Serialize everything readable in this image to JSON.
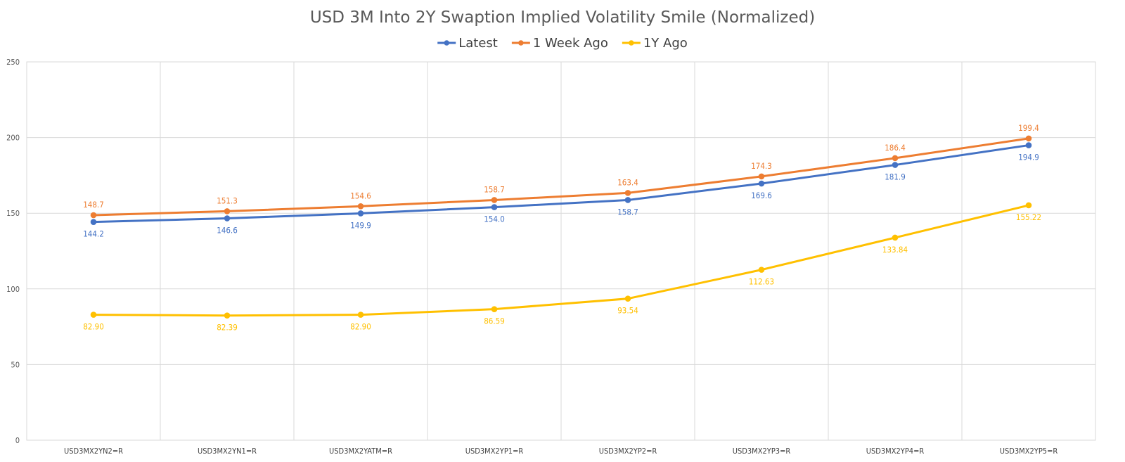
{
  "chart_data": {
    "type": "line",
    "title": "USD 3M Into 2Y Swaption Implied Volatility Smile (Normalized)",
    "xlabel": "",
    "ylabel": "",
    "categories": [
      "USD3MX2YN2=R",
      "USD3MX2YN1=R",
      "USD3MX2YATM=R",
      "USD3MX2YP1=R",
      "USD3MX2YP2=R",
      "USD3MX2YP3=R",
      "USD3MX2YP4=R",
      "USD3MX2YP5=R"
    ],
    "ylim": [
      0,
      250
    ],
    "yticks": [
      0,
      50,
      100,
      150,
      200,
      250
    ],
    "grid": true,
    "legend_position": "top",
    "series": [
      {
        "name": "Latest",
        "color": "#4472C4",
        "values": [
          144.2,
          146.6,
          149.9,
          154.0,
          158.7,
          169.6,
          181.9,
          194.9
        ],
        "labels": [
          "144.2",
          "146.6",
          "149.9",
          "154.0",
          "158.7",
          "169.6",
          "181.9",
          "194.9"
        ],
        "label_position": "below"
      },
      {
        "name": "1 Week Ago",
        "color": "#ED7D31",
        "values": [
          148.7,
          151.3,
          154.6,
          158.7,
          163.4,
          174.3,
          186.4,
          199.4
        ],
        "labels": [
          "148.7",
          "151.3",
          "154.6",
          "158.7",
          "163.4",
          "174.3",
          "186.4",
          "199.4"
        ],
        "label_position": "above"
      },
      {
        "name": "1Y Ago",
        "color": "#FFC000",
        "values": [
          82.9,
          82.39,
          82.9,
          86.59,
          93.54,
          112.63,
          133.84,
          155.22
        ],
        "labels": [
          "82.90",
          "82.39",
          "82.90",
          "86.59",
          "93.54",
          "112.63",
          "133.84",
          "155.22"
        ],
        "label_position": "below"
      }
    ]
  }
}
